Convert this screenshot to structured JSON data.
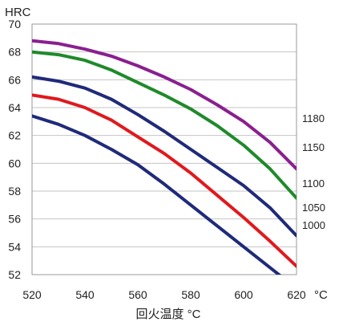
{
  "chart_data": {
    "type": "line",
    "ylabel": "HRC",
    "xlabel": "回火温度 °C",
    "x_unit_label": "°C",
    "xlim": [
      520,
      620
    ],
    "ylim": [
      52,
      70
    ],
    "x_ticks": [
      520,
      540,
      560,
      580,
      600,
      620
    ],
    "y_ticks": [
      52,
      54,
      56,
      58,
      60,
      62,
      64,
      66,
      68,
      70
    ],
    "grid": "horizontal",
    "series": [
      {
        "name": "1180",
        "color": "#8a1f8f",
        "points": [
          [
            520,
            68.8
          ],
          [
            530,
            68.6
          ],
          [
            540,
            68.2
          ],
          [
            550,
            67.7
          ],
          [
            560,
            67.0
          ],
          [
            570,
            66.2
          ],
          [
            580,
            65.3
          ],
          [
            590,
            64.2
          ],
          [
            600,
            63.0
          ],
          [
            610,
            61.5
          ],
          [
            620,
            59.6
          ]
        ]
      },
      {
        "name": "1150",
        "color": "#1f8a2a",
        "points": [
          [
            520,
            68.0
          ],
          [
            530,
            67.8
          ],
          [
            540,
            67.4
          ],
          [
            550,
            66.7
          ],
          [
            560,
            65.8
          ],
          [
            570,
            64.9
          ],
          [
            580,
            63.9
          ],
          [
            590,
            62.7
          ],
          [
            600,
            61.3
          ],
          [
            610,
            59.6
          ],
          [
            620,
            57.5
          ]
        ]
      },
      {
        "name": "1100",
        "color": "#1f2a7a",
        "points": [
          [
            520,
            66.2
          ],
          [
            530,
            65.9
          ],
          [
            540,
            65.4
          ],
          [
            550,
            64.6
          ],
          [
            560,
            63.5
          ],
          [
            570,
            62.3
          ],
          [
            580,
            61.0
          ],
          [
            590,
            59.7
          ],
          [
            600,
            58.4
          ],
          [
            610,
            56.8
          ],
          [
            620,
            54.8
          ]
        ]
      },
      {
        "name": "1050",
        "color": "#e0191e",
        "points": [
          [
            520,
            64.9
          ],
          [
            530,
            64.6
          ],
          [
            540,
            64.0
          ],
          [
            550,
            63.1
          ],
          [
            560,
            61.9
          ],
          [
            570,
            60.7
          ],
          [
            580,
            59.3
          ],
          [
            590,
            57.7
          ],
          [
            600,
            56.1
          ],
          [
            610,
            54.4
          ],
          [
            620,
            52.6
          ]
        ]
      },
      {
        "name": "1000",
        "color": "#1f2a7a",
        "points": [
          [
            520,
            63.4
          ],
          [
            530,
            62.8
          ],
          [
            540,
            62.0
          ],
          [
            550,
            61.0
          ],
          [
            560,
            59.9
          ],
          [
            570,
            58.5
          ],
          [
            580,
            57.0
          ],
          [
            590,
            55.5
          ],
          [
            600,
            54.0
          ],
          [
            610,
            52.5
          ],
          [
            620,
            51.0
          ]
        ]
      }
    ],
    "series_label_order": [
      "1180",
      "1150",
      "1100",
      "1050",
      "1000"
    ]
  }
}
